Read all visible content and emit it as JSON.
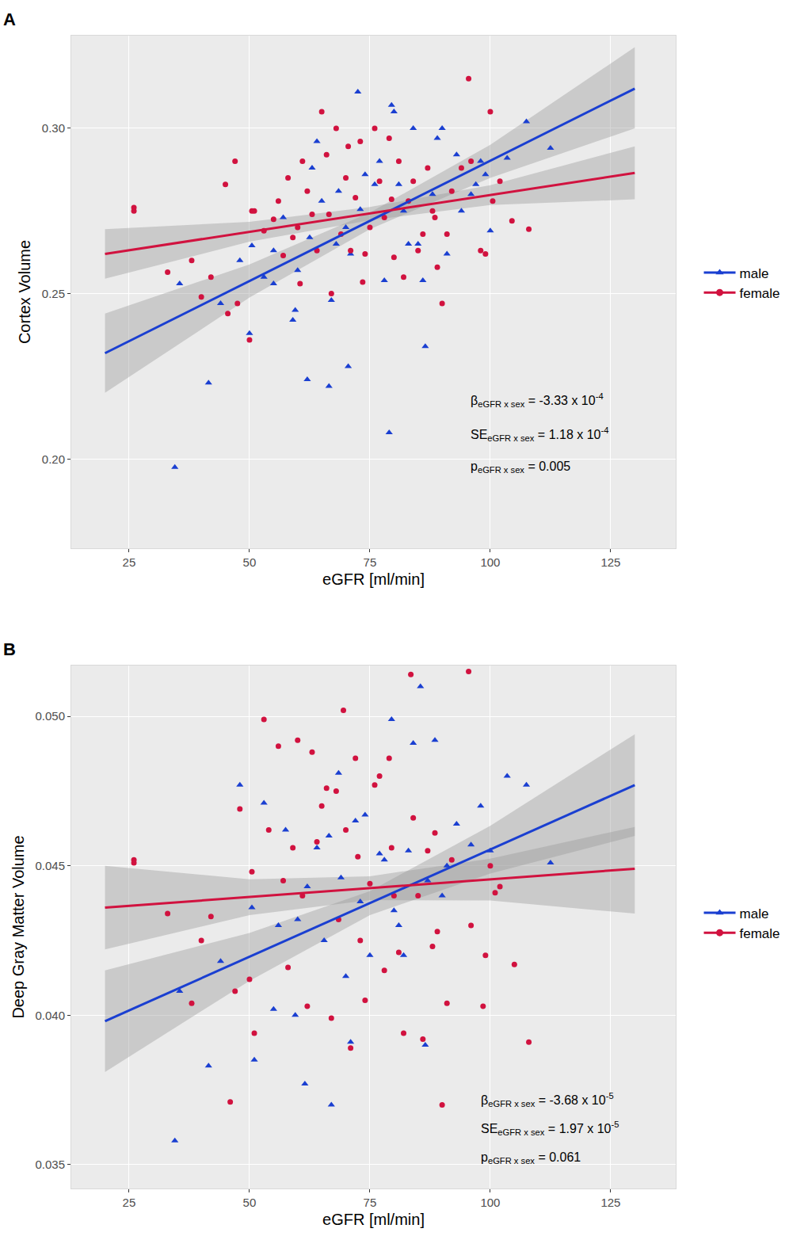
{
  "chart_data": [
    {
      "type": "scatter",
      "title": "A",
      "x_label": "eGFR [ml/min]",
      "y_label": "Cortex Volume",
      "xlim": [
        13,
        138.5
      ],
      "ylim": [
        0.173,
        0.328
      ],
      "xticks": [
        25,
        50,
        75,
        100,
        125
      ],
      "yticks": [
        {
          "value": 0.2,
          "label": "0.20"
        },
        {
          "value": 0.25,
          "label": "0.25"
        },
        {
          "value": 0.3,
          "label": "0.30"
        }
      ],
      "grid": true,
      "series": [
        {
          "name": "male",
          "color": "#1a3fd1",
          "marker": "triangle-up",
          "x": [
            34.5,
            41.5,
            35.5,
            44,
            48,
            50,
            53,
            55,
            59,
            59.5,
            60,
            62,
            63,
            66.5,
            67,
            70.5,
            72.5,
            74,
            79,
            79.5,
            80,
            86.5,
            84,
            89,
            90,
            93,
            98,
            97,
            100,
            103.5,
            107.5,
            112.5,
            85,
            82,
            78,
            76,
            70,
            68,
            65,
            62.5,
            57,
            55,
            50.5,
            64,
            77,
            81,
            88,
            91,
            94,
            99,
            96,
            73,
            71,
            86,
            83,
            68.5
          ],
          "y": [
            0.1975,
            0.223,
            0.253,
            0.247,
            0.26,
            0.238,
            0.255,
            0.253,
            0.242,
            0.245,
            0.257,
            0.224,
            0.288,
            0.222,
            0.248,
            0.228,
            0.311,
            0.286,
            0.208,
            0.307,
            0.305,
            0.234,
            0.3,
            0.297,
            0.3,
            0.292,
            0.29,
            0.283,
            0.269,
            0.291,
            0.302,
            0.294,
            0.265,
            0.275,
            0.254,
            0.283,
            0.27,
            0.265,
            0.278,
            0.267,
            0.273,
            0.263,
            0.2645,
            0.296,
            0.29,
            0.283,
            0.28,
            0.262,
            0.275,
            0.286,
            0.28,
            0.2755,
            0.262,
            0.254,
            0.265,
            0.281
          ],
          "fit": {
            "x": [
              20,
              130
            ],
            "y": [
              0.232,
              0.312
            ]
          },
          "band": {
            "x": [
              20,
              50,
              75,
              100,
              130
            ],
            "lower": [
              0.22,
              0.2488,
              0.2695,
              0.285,
              0.3
            ],
            "upper": [
              0.244,
              0.2588,
              0.2745,
              0.295,
              0.3245
            ]
          }
        },
        {
          "name": "female",
          "color": "#d1123f",
          "marker": "circle",
          "x": [
            26,
            26,
            33,
            38,
            40,
            42,
            45,
            45.5,
            47,
            47.5,
            50,
            50.5,
            51,
            53,
            55,
            56,
            58,
            59,
            60,
            61,
            62,
            63,
            64,
            65,
            66,
            67,
            68,
            69,
            70,
            71,
            72,
            73,
            74,
            75,
            76,
            77,
            78,
            79,
            80,
            81,
            82,
            83,
            84,
            85,
            86,
            87,
            88,
            89,
            90,
            91,
            92,
            95.5,
            96,
            98,
            99,
            100,
            100.5,
            102,
            104.5,
            108,
            94,
            57,
            60.5,
            70.5,
            79.5,
            66.5,
            88.5,
            73.5
          ],
          "y": [
            0.275,
            0.276,
            0.2565,
            0.26,
            0.249,
            0.255,
            0.283,
            0.244,
            0.29,
            0.247,
            0.236,
            0.275,
            0.275,
            0.269,
            0.2725,
            0.278,
            0.285,
            0.267,
            0.27,
            0.29,
            0.281,
            0.274,
            0.263,
            0.305,
            0.292,
            0.25,
            0.3,
            0.268,
            0.285,
            0.263,
            0.279,
            0.296,
            0.262,
            0.27,
            0.3,
            0.284,
            0.273,
            0.297,
            0.261,
            0.29,
            0.255,
            0.278,
            0.284,
            0.263,
            0.268,
            0.288,
            0.275,
            0.258,
            0.247,
            0.268,
            0.281,
            0.315,
            0.29,
            0.263,
            0.262,
            0.305,
            0.278,
            0.284,
            0.272,
            0.2695,
            0.288,
            0.2615,
            0.253,
            0.2945,
            0.2785,
            0.274,
            0.273,
            0.2535
          ],
          "fit": {
            "x": [
              20,
              130
            ],
            "y": [
              0.262,
              0.2865
            ]
          },
          "band": {
            "x": [
              20,
              50,
              75,
              100,
              130
            ],
            "lower": [
              0.2545,
              0.2657,
              0.2722,
              0.2768,
              0.2785
            ],
            "upper": [
              0.2695,
              0.2717,
              0.2762,
              0.2828,
              0.2945
            ]
          }
        }
      ],
      "annotations": [
        {
          "symbol": "β",
          "subscript": "eGFR x sex",
          "value": "= -3.33 x 10",
          "exponent": "-4"
        },
        {
          "symbol": "SE",
          "subscript": "eGFR x sex",
          "value": "= 1.18 x 10",
          "exponent": "-4"
        },
        {
          "symbol": "p",
          "subscript": "eGFR x sex",
          "value": "= 0.005"
        }
      ]
    },
    {
      "type": "scatter",
      "title": "B",
      "x_label": "eGFR [ml/min]",
      "y_label": "Deep Gray Matter Volume",
      "xlim": [
        13,
        138.5
      ],
      "ylim": [
        0.0342,
        0.0517
      ],
      "xticks": [
        25,
        50,
        75,
        100,
        125
      ],
      "yticks": [
        0.035,
        {
          "value": 0.04,
          "label": "0.040"
        },
        0.045,
        {
          "value": 0.05,
          "label": "0.050"
        }
      ],
      "grid": true,
      "series": [
        {
          "name": "male",
          "color": "#1a3fd1",
          "marker": "triangle-up",
          "x": [
            34.5,
            41.5,
            35.5,
            44,
            48,
            50.5,
            51,
            53,
            55,
            57.5,
            59.5,
            61.5,
            62,
            64,
            66.5,
            67,
            68.5,
            70,
            71,
            72,
            74,
            75,
            77,
            79.5,
            80,
            82,
            84,
            85.5,
            86.5,
            87,
            88.5,
            90,
            93,
            96,
            98,
            100,
            103.5,
            107.5,
            112.5,
            60,
            65.5,
            78,
            81,
            91,
            69,
            73,
            83,
            56
          ],
          "y": [
            0.0358,
            0.0383,
            0.0408,
            0.0418,
            0.0477,
            0.0436,
            0.0385,
            0.0471,
            0.0402,
            0.0462,
            0.04,
            0.0377,
            0.0443,
            0.0456,
            0.046,
            0.037,
            0.0481,
            0.0413,
            0.0391,
            0.0465,
            0.0467,
            0.042,
            0.0454,
            0.0499,
            0.0435,
            0.042,
            0.0491,
            0.051,
            0.039,
            0.0445,
            0.0492,
            0.044,
            0.0464,
            0.0457,
            0.047,
            0.0455,
            0.048,
            0.0477,
            0.0451,
            0.0432,
            0.0425,
            0.0452,
            0.043,
            0.045,
            0.0446,
            0.0438,
            0.0455,
            0.043
          ],
          "fit": {
            "x": [
              20,
              130
            ],
            "y": [
              0.0398,
              0.0477
            ]
          },
          "band": {
            "x": [
              20,
              50,
              75,
              100,
              130
            ],
            "lower": [
              0.0381,
              0.04115,
              0.04335,
              0.04474,
              0.046
            ],
            "upper": [
              0.0415,
              0.04275,
              0.04415,
              0.04634,
              0.0494
            ]
          }
        },
        {
          "name": "female",
          "color": "#d1123f",
          "marker": "circle",
          "x": [
            26,
            26,
            33,
            38,
            40,
            42,
            46,
            47,
            48,
            50,
            50.5,
            51,
            53,
            54,
            56,
            57,
            58,
            60,
            61,
            62,
            63,
            64,
            65,
            66,
            67,
            68,
            69.5,
            70,
            71,
            72,
            73,
            74,
            75,
            76,
            77,
            78,
            79,
            80,
            81,
            82,
            83.5,
            84,
            85,
            86,
            87,
            88,
            89,
            90,
            91,
            92,
            95.5,
            96,
            98.5,
            99,
            100,
            101,
            102,
            105,
            108,
            59,
            68.5,
            79.5,
            72.5,
            88.5
          ],
          "y": [
            0.0452,
            0.0451,
            0.0434,
            0.0404,
            0.0425,
            0.0433,
            0.0371,
            0.0408,
            0.0469,
            0.0412,
            0.0448,
            0.0394,
            0.0499,
            0.0462,
            0.049,
            0.0445,
            0.0416,
            0.0492,
            0.044,
            0.0403,
            0.0488,
            0.0458,
            0.047,
            0.0476,
            0.0399,
            0.0475,
            0.0502,
            0.0462,
            0.0389,
            0.0486,
            0.0425,
            0.0405,
            0.0444,
            0.0477,
            0.048,
            0.0415,
            0.0486,
            0.044,
            0.0421,
            0.0394,
            0.0514,
            0.0466,
            0.044,
            0.0392,
            0.0455,
            0.0423,
            0.0428,
            0.037,
            0.0404,
            0.0452,
            0.0515,
            0.043,
            0.0403,
            0.042,
            0.045,
            0.0441,
            0.0443,
            0.0417,
            0.0391,
            0.0456,
            0.0432,
            0.0456,
            0.0453,
            0.0461
          ],
          "fit": {
            "x": [
              20,
              130
            ],
            "y": [
              0.0436,
              0.0449
            ]
          },
          "band": {
            "x": [
              20,
              50,
              75,
              100,
              130
            ],
            "lower": [
              0.0422,
              0.04335,
              0.04385,
              0.04384,
              0.0434
            ],
            "upper": [
              0.045,
              0.04455,
              0.04465,
              0.04524,
              0.0463
            ]
          }
        }
      ],
      "annotations": [
        {
          "symbol": "β",
          "subscript": "eGFR x sex",
          "value": "= -3.68 x 10",
          "exponent": "-5"
        },
        {
          "symbol": "SE",
          "subscript": "eGFR x sex",
          "value": "= 1.97 x 10",
          "exponent": "-5"
        },
        {
          "symbol": "p",
          "subscript": "eGFR x sex",
          "value": "= 0.061"
        }
      ]
    }
  ]
}
